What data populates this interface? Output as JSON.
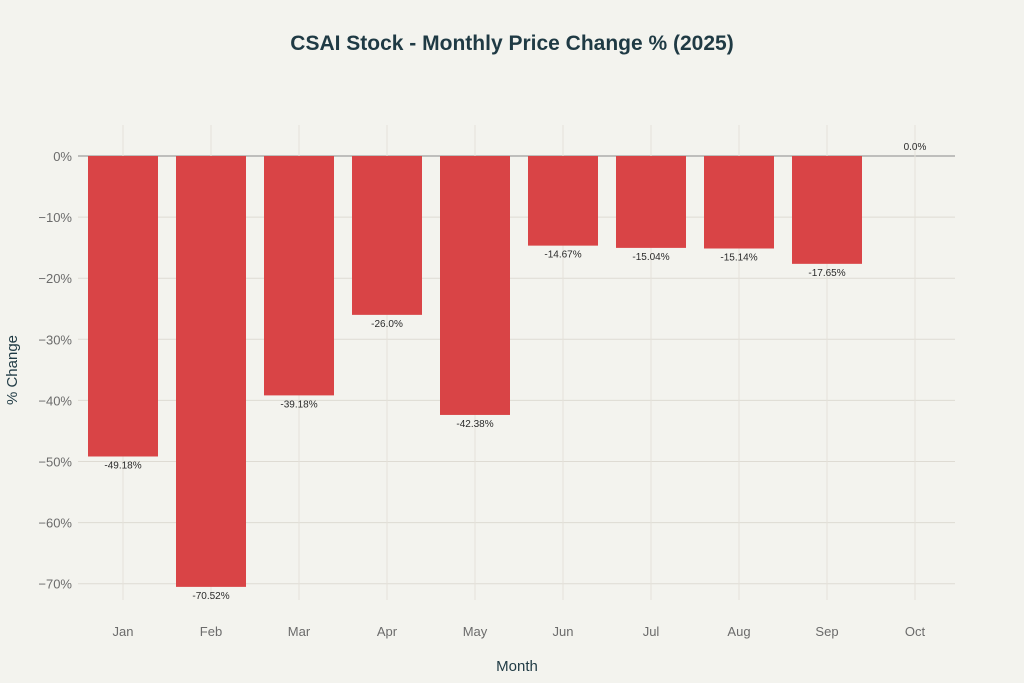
{
  "chart_data": {
    "type": "bar",
    "title": "CSAI Stock - Monthly Price Change % (2025)",
    "xlabel": "Month",
    "ylabel": "% Change",
    "categories": [
      "Jan",
      "Feb",
      "Mar",
      "Apr",
      "May",
      "Jun",
      "Jul",
      "Aug",
      "Sep",
      "Oct"
    ],
    "values": [
      -49.18,
      -70.52,
      -39.18,
      -26.0,
      -42.38,
      -14.67,
      -15.04,
      -15.14,
      -17.65,
      0.0
    ],
    "data_labels": [
      "-49.18%",
      "-70.52%",
      "-39.18%",
      "-26.0%",
      "-42.38%",
      "-14.67%",
      "-15.04%",
      "-15.14%",
      "-17.65%",
      "0.0%"
    ],
    "ylim": [
      -75,
      5
    ],
    "yticks": [
      0,
      -10,
      -20,
      -30,
      -40,
      -50,
      -60,
      -70
    ],
    "ytick_labels": [
      "0%",
      "−10%",
      "−20%",
      "−30%",
      "−40%",
      "−50%",
      "−60%",
      "−70%"
    ],
    "grid": true,
    "bar_color": "#d94446",
    "background": "#f3f3ee"
  }
}
